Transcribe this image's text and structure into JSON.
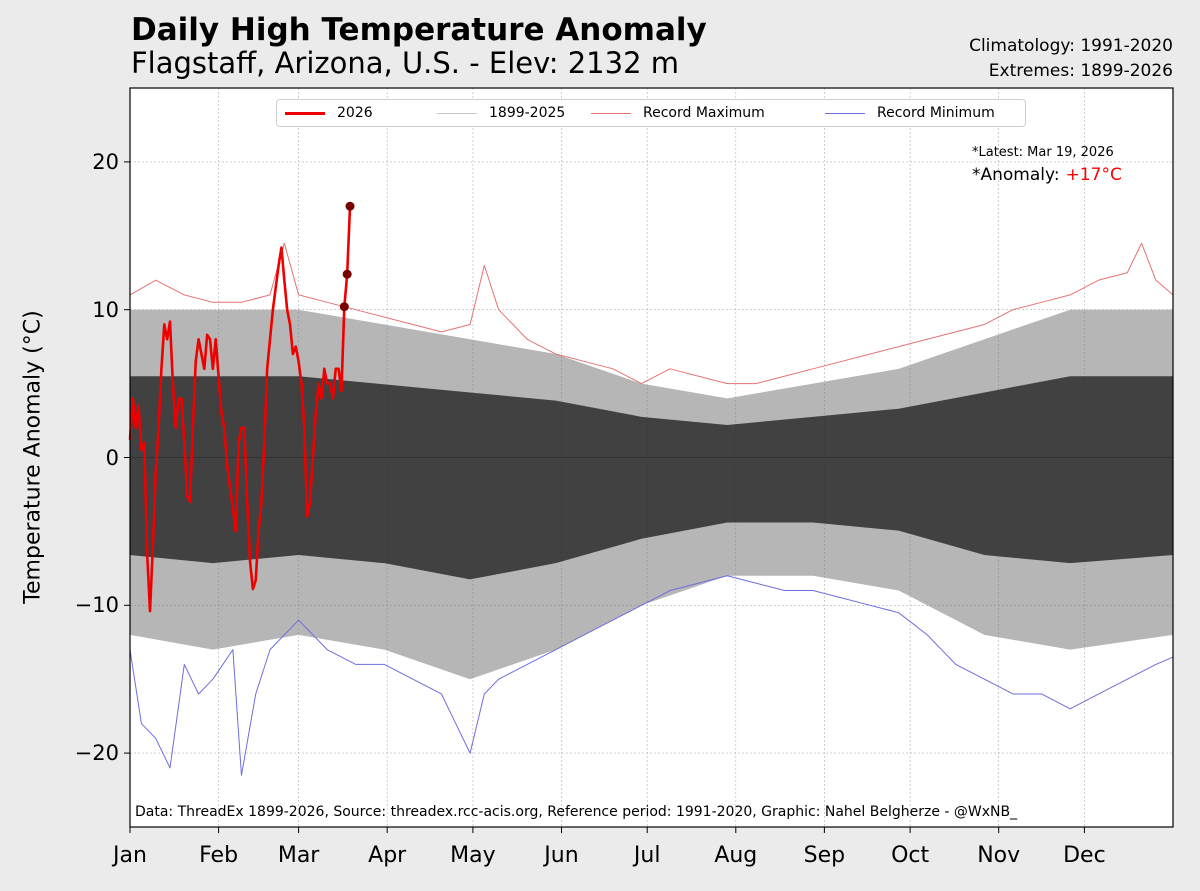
{
  "header": {
    "title": "Daily High Temperature Anomaly",
    "subtitle": "Flagstaff, Arizona, U.S. - Elev: 2132 m",
    "climatology": "Climatology: 1991-2020",
    "extremes": "Extremes: 1899-2026"
  },
  "legend": {
    "items": [
      {
        "label": "2026",
        "color": "#ee0000"
      },
      {
        "label": "1899-2025",
        "color": "#c9c9c9"
      },
      {
        "label": "Record Maximum",
        "color": "#e57373"
      },
      {
        "label": "Record Minimum",
        "color": "#6d6ddf"
      }
    ]
  },
  "annotation": {
    "latest": "*Latest: Mar 19, 2026",
    "anomaly_label": "*Anomaly:",
    "anomaly_value": "+17°C"
  },
  "credit": "Data: ThreadEx 1899-2026, Source: threadex.rcc-acis.org, Reference period: 1991-2020, Graphic: Nahel Belgherze - @WxNB_",
  "chart_data": {
    "type": "line",
    "title": "Daily High Temperature Anomaly",
    "subtitle": "Flagstaff, Arizona, U.S. - Elev: 2132 m",
    "ylabel": "Temperature Anomaly (°C)",
    "xlabel": "",
    "ylim": [
      -25,
      25
    ],
    "xlim_days": [
      1,
      366
    ],
    "y_ticks": [
      -20,
      -10,
      0,
      10,
      20
    ],
    "y_tick_labels": [
      "−20",
      "−10",
      "0",
      "10",
      "20"
    ],
    "x_ticks": [
      {
        "day": 1,
        "label": "Jan"
      },
      {
        "day": 32,
        "label": "Feb"
      },
      {
        "day": 60,
        "label": "Mar"
      },
      {
        "day": 91,
        "label": "Apr"
      },
      {
        "day": 121,
        "label": "May"
      },
      {
        "day": 152,
        "label": "Jun"
      },
      {
        "day": 182,
        "label": "Jul"
      },
      {
        "day": 213,
        "label": "Aug"
      },
      {
        "day": 244,
        "label": "Sep"
      },
      {
        "day": 274,
        "label": "Oct"
      },
      {
        "day": 305,
        "label": "Nov"
      },
      {
        "day": 335,
        "label": "Dec"
      }
    ],
    "grid": true,
    "legend_position": "top-center",
    "series": [
      {
        "name": "2026",
        "color": "#ee0000",
        "x": [
          1,
          2,
          3,
          4,
          5,
          6,
          7,
          8,
          9,
          10,
          11,
          12,
          13,
          14,
          15,
          16,
          17,
          18,
          19,
          20,
          21,
          22,
          23,
          24,
          25,
          26,
          27,
          28,
          29,
          30,
          31,
          32,
          33,
          34,
          35,
          36,
          37,
          38,
          39,
          40,
          41,
          42,
          43,
          44,
          45,
          46,
          47,
          48,
          49,
          50,
          51,
          52,
          53,
          54,
          55,
          56,
          57,
          58,
          59,
          60,
          61,
          62,
          63,
          64,
          65,
          66,
          67,
          68,
          69,
          70,
          71,
          72,
          73,
          74,
          75,
          76,
          77,
          78
        ],
        "values": [
          1.2,
          4,
          2,
          3.5,
          0.5,
          1,
          -6.5,
          -10.4,
          -6,
          -1,
          2,
          6,
          9,
          8,
          9.2,
          5,
          2,
          4,
          4,
          1,
          -2.6,
          -3,
          2,
          6.5,
          8,
          7,
          6,
          8.3,
          8,
          6,
          8,
          5.5,
          3,
          2,
          -0.5,
          -2,
          -3.4,
          -5,
          1,
          2,
          2,
          -3,
          -7,
          -8.9,
          -8.3,
          -5,
          -3,
          1,
          6,
          8,
          10,
          11.5,
          13,
          14.2,
          12,
          10,
          9,
          7,
          7.5,
          6.5,
          5,
          2,
          -4,
          -3,
          0,
          3,
          5,
          4,
          6,
          5,
          5,
          4,
          6,
          6,
          4.5,
          10.2,
          12.4,
          17
        ]
      },
      {
        "name": "Record Maximum",
        "color": "#e57373",
        "x": [
          1,
          10,
          20,
          30,
          40,
          50,
          55,
          60,
          70,
          80,
          90,
          100,
          110,
          120,
          125,
          130,
          140,
          150,
          160,
          170,
          180,
          190,
          200,
          210,
          220,
          230,
          240,
          250,
          260,
          270,
          280,
          290,
          300,
          310,
          320,
          330,
          340,
          350,
          355,
          360,
          366
        ],
        "values": [
          11,
          12,
          11,
          10.5,
          10.5,
          11,
          14.5,
          11,
          10.5,
          10,
          9.5,
          9,
          8.5,
          9,
          13,
          10,
          8,
          7,
          6.5,
          6,
          5,
          6,
          5.5,
          5,
          5,
          5.5,
          6,
          6.5,
          7,
          7.5,
          8,
          8.5,
          9,
          10,
          10.5,
          11,
          12,
          12.5,
          14.5,
          12,
          11
        ]
      },
      {
        "name": "Record Minimum",
        "color": "#6d6ddf",
        "x": [
          1,
          5,
          10,
          15,
          20,
          25,
          30,
          37,
          40,
          45,
          50,
          60,
          70,
          80,
          90,
          100,
          110,
          115,
          120,
          125,
          130,
          140,
          150,
          160,
          170,
          180,
          190,
          200,
          210,
          220,
          230,
          240,
          250,
          260,
          270,
          280,
          290,
          300,
          310,
          320,
          330,
          340,
          350,
          360,
          366
        ],
        "values": [
          -13,
          -18,
          -19,
          -21,
          -14,
          -16,
          -15,
          -13,
          -21.5,
          -16,
          -13,
          -11,
          -13,
          -14,
          -14,
          -15,
          -16,
          -18,
          -20,
          -16,
          -15,
          -14,
          -13,
          -12,
          -11,
          -10,
          -9,
          -8.5,
          -8,
          -8.5,
          -9,
          -9,
          -9.5,
          -10,
          -10.5,
          -12,
          -14,
          -15,
          -16,
          -16,
          -17,
          -16,
          -15,
          -14,
          -13.5
        ]
      }
    ],
    "historical_range": {
      "name": "1899-2025",
      "color": "#c9c9c9",
      "x": [
        1,
        30,
        60,
        90,
        120,
        150,
        180,
        210,
        240,
        270,
        300,
        330,
        366
      ],
      "upper": [
        10,
        10,
        10,
        9,
        8,
        7,
        5,
        4,
        5,
        6,
        8,
        10,
        10
      ],
      "lower": [
        -12,
        -13,
        -12,
        -13,
        -15,
        -13,
        -10,
        -8,
        -8,
        -9,
        -12,
        -13,
        -12
      ]
    },
    "latest_points": {
      "x": [
        76,
        77,
        78
      ],
      "values": [
        10.2,
        12.4,
        17
      ]
    }
  }
}
